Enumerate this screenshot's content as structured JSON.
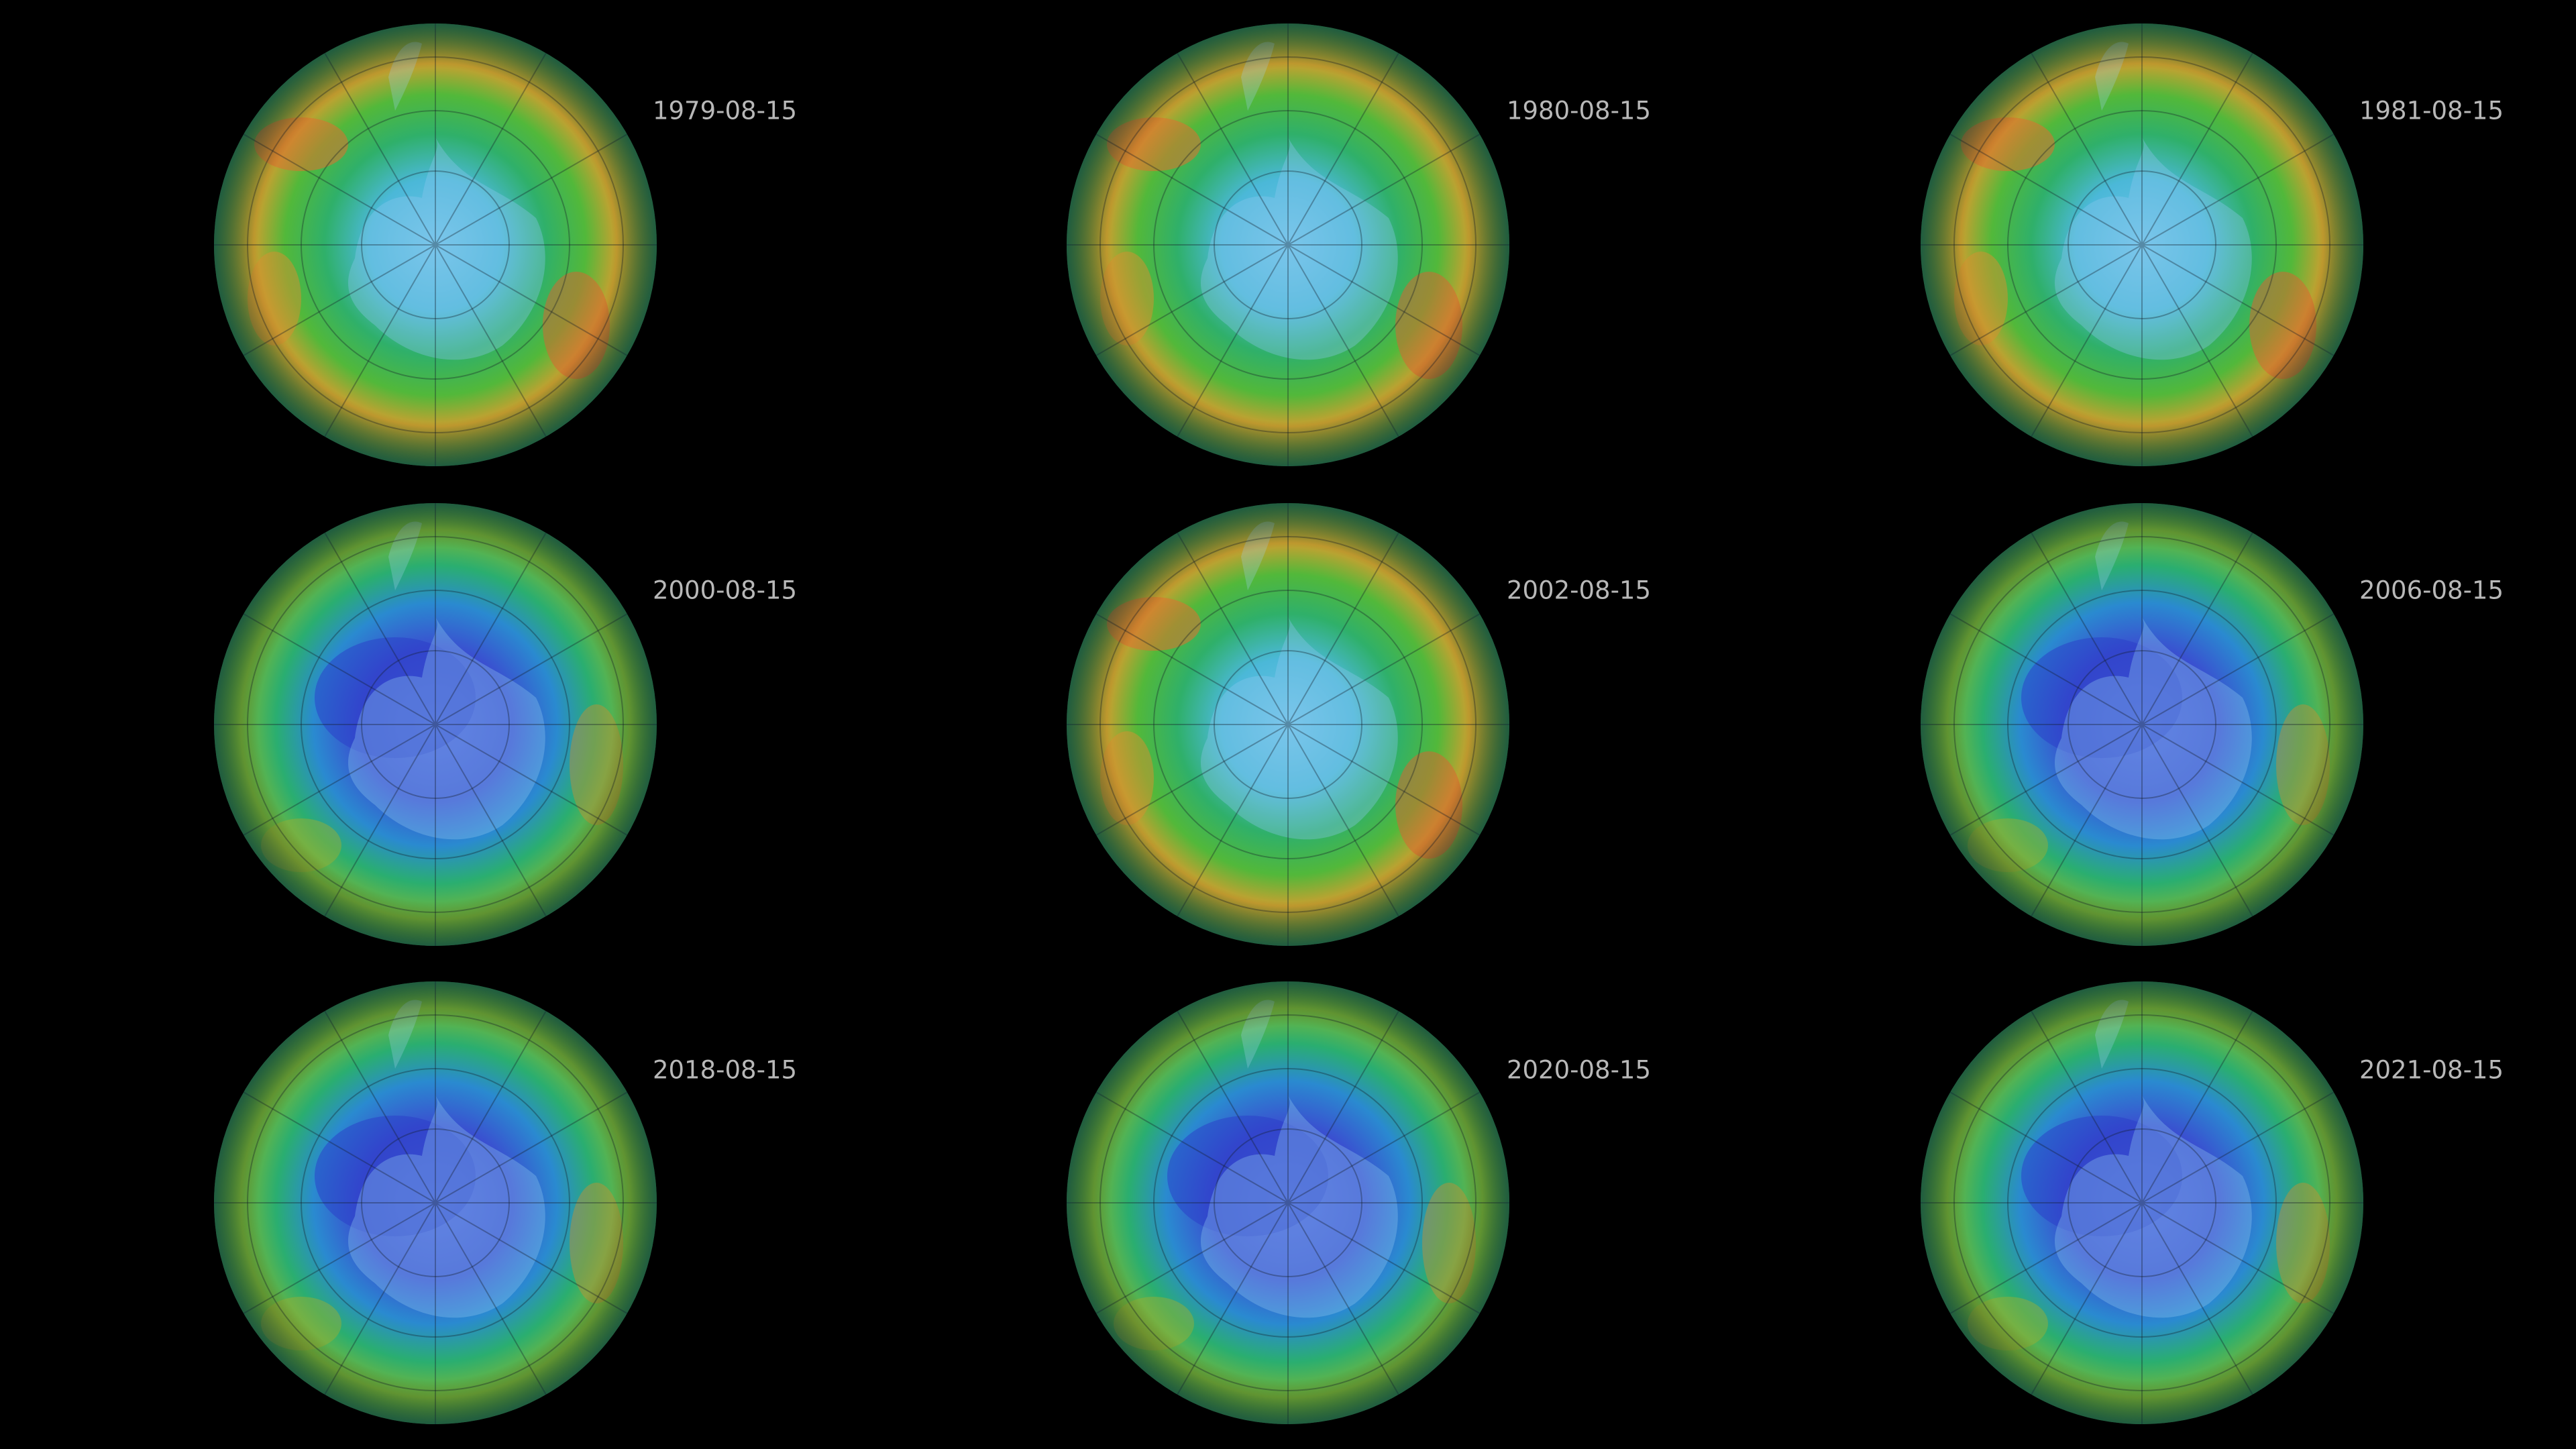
{
  "panels": [
    {
      "date": "1979-08-15"
    },
    {
      "date": "1980-08-15"
    },
    {
      "date": "1981-08-15"
    },
    {
      "date": "2000-08-15"
    },
    {
      "date": "2002-08-15"
    },
    {
      "date": "2006-08-15"
    },
    {
      "date": "2018-08-15"
    },
    {
      "date": "2020-08-15"
    },
    {
      "date": "2021-08-15"
    }
  ]
}
